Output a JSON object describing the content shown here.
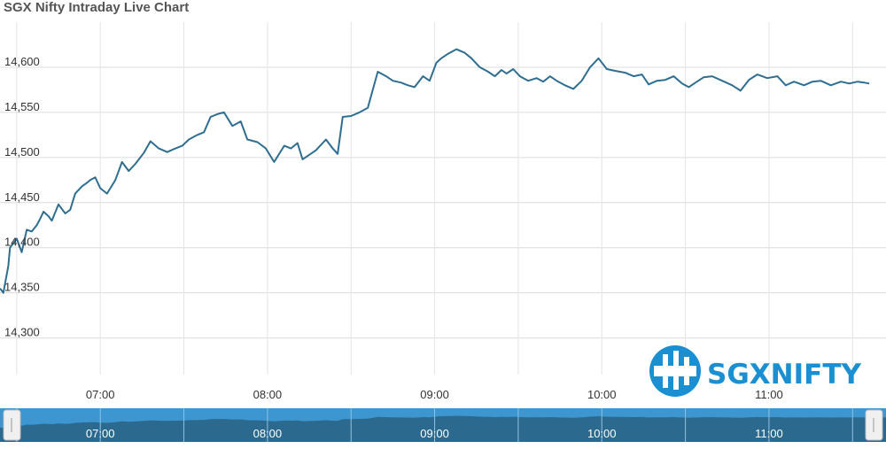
{
  "chart_data": {
    "type": "line",
    "title": "SGX Nifty Intraday Live Chart",
    "ylim": [
      14280,
      14650
    ],
    "y_ticks": [
      14300,
      14350,
      14400,
      14450,
      14500,
      14550,
      14600
    ],
    "y_tick_labels": [
      "14,300",
      "14,350",
      "14,400",
      "14,450",
      "14,500",
      "14,550",
      "14,600"
    ],
    "x_range_hours": [
      6.4,
      11.7
    ],
    "x_ticks": [
      7,
      8,
      9,
      10,
      11
    ],
    "x_tick_labels": [
      "07:00",
      "08:00",
      "09:00",
      "10:00",
      "11:00"
    ],
    "grid": true,
    "line_color": "#2f6e91",
    "navigator_color": "#3d96cf",
    "series": [
      {
        "x": [
          6.4,
          6.42,
          6.45,
          6.46,
          6.48,
          6.5,
          6.53,
          6.56,
          6.59,
          6.62,
          6.64,
          6.66,
          6.69,
          6.71,
          6.75,
          6.79,
          6.82,
          6.85,
          6.89,
          6.92,
          6.94,
          6.97,
          7.0,
          7.04,
          7.09,
          7.13,
          7.17,
          7.21,
          7.26,
          7.3,
          7.35,
          7.4,
          7.45,
          7.49,
          7.53,
          7.58,
          7.62,
          7.66,
          7.7,
          7.74,
          7.79,
          7.84,
          7.88,
          7.94,
          7.99,
          8.04,
          8.1,
          8.14,
          8.18,
          8.21,
          8.25,
          8.29,
          8.35,
          8.39,
          8.42,
          8.45,
          8.5,
          8.55,
          8.6,
          8.66,
          8.71,
          8.75,
          8.8,
          8.84,
          8.88,
          8.93,
          8.97,
          9.01,
          9.04,
          9.08,
          9.13,
          9.18,
          9.22,
          9.27,
          9.32,
          9.36,
          9.4,
          9.43,
          9.47,
          9.51,
          9.56,
          9.61,
          9.65,
          9.69,
          9.73,
          9.78,
          9.83,
          9.88,
          9.93,
          9.98,
          10.03,
          10.08,
          10.14,
          10.19,
          10.24,
          10.28,
          10.33,
          10.38,
          10.43,
          10.48,
          10.52,
          10.56,
          10.61,
          10.66,
          10.72,
          10.78,
          10.83,
          10.88,
          10.93,
          10.99,
          11.05,
          11.1,
          11.15,
          11.21,
          11.26,
          11.31,
          11.37,
          11.43,
          11.48,
          11.53,
          11.57,
          11.6
        ],
        "y": [
          14355,
          14350,
          14380,
          14400,
          14405,
          14410,
          14395,
          14420,
          14418,
          14425,
          14432,
          14440,
          14435,
          14430,
          14448,
          14438,
          14442,
          14460,
          14468,
          14472,
          14475,
          14478,
          14466,
          14460,
          14475,
          14495,
          14485,
          14493,
          14505,
          14518,
          14510,
          14506,
          14510,
          14513,
          14520,
          14525,
          14528,
          14545,
          14548,
          14550,
          14535,
          14540,
          14520,
          14517,
          14510,
          14495,
          14513,
          14510,
          14516,
          14498,
          14503,
          14508,
          14520,
          14510,
          14504,
          14545,
          14546,
          14550,
          14555,
          14595,
          14590,
          14585,
          14583,
          14580,
          14578,
          14590,
          14585,
          14605,
          14610,
          14615,
          14620,
          14616,
          14610,
          14600,
          14595,
          14590,
          14597,
          14593,
          14598,
          14590,
          14585,
          14588,
          14584,
          14590,
          14585,
          14580,
          14576,
          14585,
          14600,
          14610,
          14598,
          14596,
          14594,
          14590,
          14592,
          14581,
          14585,
          14586,
          14590,
          14582,
          14578,
          14583,
          14589,
          14590,
          14585,
          14580,
          14574,
          14586,
          14592,
          14588,
          14590,
          14580,
          14584,
          14580,
          14584,
          14585,
          14580,
          14584,
          14582,
          14584,
          14583,
          14582
        ]
      }
    ]
  }
}
